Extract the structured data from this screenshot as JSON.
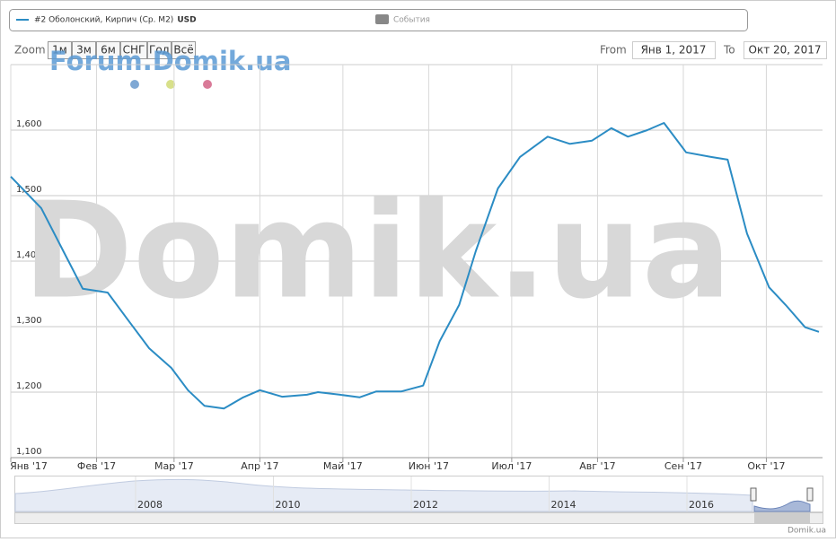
{
  "chart_data": {
    "type": "line",
    "series": [
      {
        "name": "#2 Оболонский, Кирпич (Ср. М2)",
        "unit": "USD",
        "color": "#2b8cc4",
        "x": [
          "2017-01-01",
          "2017-01-12",
          "2017-01-20",
          "2017-01-27",
          "2017-02-05",
          "2017-02-12",
          "2017-02-20",
          "2017-02-28",
          "2017-03-06",
          "2017-03-12",
          "2017-03-19",
          "2017-03-26",
          "2017-04-01",
          "2017-04-09",
          "2017-04-18",
          "2017-04-22",
          "2017-04-30",
          "2017-05-07",
          "2017-05-13",
          "2017-05-22",
          "2017-05-30",
          "2017-06-05",
          "2017-06-12",
          "2017-06-18",
          "2017-06-26",
          "2017-07-04",
          "2017-07-14",
          "2017-07-22",
          "2017-07-30",
          "2017-08-06",
          "2017-08-12",
          "2017-08-19",
          "2017-08-25",
          "2017-09-02",
          "2017-09-11",
          "2017-09-17",
          "2017-09-24",
          "2017-10-02",
          "2017-10-08",
          "2017-10-15",
          "2017-10-20"
        ],
        "values": [
          1529,
          1481,
          1415,
          1358,
          1352,
          1312,
          1267,
          1237,
          1203,
          1179,
          1175,
          1192,
          1203,
          1193,
          1196,
          1200,
          1196,
          1192,
          1201,
          1201,
          1210,
          1278,
          1333,
          1415,
          1511,
          1559,
          1590,
          1579,
          1584,
          1603,
          1590,
          1600,
          1611,
          1566,
          1559,
          1555,
          1442,
          1360,
          1333,
          1299,
          1292
        ]
      }
    ],
    "legend_extra": [
      {
        "name": "События",
        "color": "#888888"
      }
    ],
    "xlim": [
      "2017-01-01",
      "2017-10-20"
    ],
    "xticks": [
      {
        "value": "2017-01-01",
        "label": "Янв '17"
      },
      {
        "value": "2017-02-01",
        "label": "Фев '17"
      },
      {
        "value": "2017-03-01",
        "label": "Мар '17"
      },
      {
        "value": "2017-04-01",
        "label": "Апр '17"
      },
      {
        "value": "2017-05-01",
        "label": "Май '17"
      },
      {
        "value": "2017-06-01",
        "label": "Июн '17"
      },
      {
        "value": "2017-07-01",
        "label": "Июл '17"
      },
      {
        "value": "2017-08-01",
        "label": "Авг '17"
      },
      {
        "value": "2017-09-01",
        "label": "Сен '17"
      },
      {
        "value": "2017-10-01",
        "label": "Окт '17"
      }
    ],
    "ylim": [
      1100,
      1700
    ],
    "yticks": [
      {
        "value": 1100,
        "label": "1,100"
      },
      {
        "value": 1200,
        "label": "1,200"
      },
      {
        "value": 1300,
        "label": "1,300"
      },
      {
        "value": 1400,
        "label": "1,400"
      },
      {
        "value": 1500,
        "label": "1,500"
      },
      {
        "value": 1600,
        "label": "1,600"
      }
    ],
    "grid": true,
    "zoom_label": "Zoom",
    "zoom_buttons": [
      "1м",
      "3м",
      "6м",
      "СНГ",
      "Год",
      "Всё"
    ],
    "from_label": "From",
    "from_value": "Янв 1, 2017",
    "to_label": "To",
    "to_value": "Окт 20, 2017",
    "navigator_years": [
      "2008",
      "2010",
      "2012",
      "2014",
      "2016"
    ],
    "watermark_small": "Forum.Domik.ua",
    "watermark_big": "Domik.ua",
    "credits": "Domik.ua"
  }
}
